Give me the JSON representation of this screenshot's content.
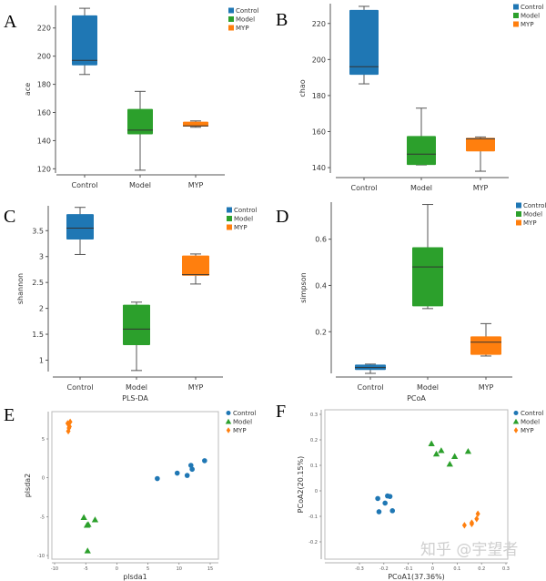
{
  "colors": {
    "Control": "#1f77b4",
    "Model": "#2ca02c",
    "MYP": "#ff7f0e"
  },
  "watermark": "知乎 @宇望者",
  "chart_data": [
    {
      "panel": "A",
      "type": "box",
      "ylabel": "ace",
      "categories": [
        "Control",
        "Model",
        "MYP"
      ],
      "yticks": [
        120,
        140,
        160,
        180,
        200,
        220
      ],
      "ylim": [
        117,
        236
      ],
      "legend": [
        "Control",
        "Model",
        "MYP"
      ],
      "legend_position": "top-right",
      "series": [
        {
          "name": "Control",
          "min": 187,
          "q1": 193.5,
          "median": 197,
          "q3": 229,
          "max": 234
        },
        {
          "name": "Model",
          "min": 119,
          "q1": 144.5,
          "median": 147.5,
          "q3": 162.5,
          "max": 175
        },
        {
          "name": "MYP",
          "min": 149.5,
          "q1": 150,
          "median": 150.5,
          "q3": 153.5,
          "max": 154
        }
      ]
    },
    {
      "panel": "B",
      "type": "box",
      "ylabel": "chao",
      "categories": [
        "Control",
        "Model",
        "MYP"
      ],
      "yticks": [
        140,
        160,
        180,
        200,
        220
      ],
      "ylim": [
        137,
        231
      ],
      "legend": [
        "Control",
        "Model",
        "MYP"
      ],
      "legend_position": "top-right",
      "series": [
        {
          "name": "Control",
          "min": 186.5,
          "q1": 191.5,
          "median": 196,
          "q3": 227.5,
          "max": 229.5
        },
        {
          "name": "Model",
          "min": 141.5,
          "q1": 141.5,
          "median": 147.5,
          "q3": 157.5,
          "max": 173
        },
        {
          "name": "MYP",
          "min": 138,
          "q1": 149,
          "median": 156,
          "q3": 156.5,
          "max": 157
        }
      ]
    },
    {
      "panel": "C",
      "type": "box",
      "ylabel": "shannon",
      "categories": [
        "Control",
        "Model",
        "MYP"
      ],
      "yticks": [
        1.0,
        1.5,
        2.0,
        2.5,
        3.0,
        3.5
      ],
      "ylim": [
        0.78,
        3.98
      ],
      "legend": [
        "Control",
        "Model",
        "MYP"
      ],
      "legend_position": "top-right",
      "series": [
        {
          "name": "Control",
          "min": 3.04,
          "q1": 3.33,
          "median": 3.55,
          "q3": 3.82,
          "max": 3.95
        },
        {
          "name": "Model",
          "min": 0.8,
          "q1": 1.29,
          "median": 1.6,
          "q3": 2.07,
          "max": 2.12
        },
        {
          "name": "MYP",
          "min": 2.47,
          "q1": 2.63,
          "median": 2.65,
          "q3": 3.02,
          "max": 3.05
        }
      ]
    },
    {
      "panel": "D",
      "type": "box",
      "ylabel": "simpson",
      "categories": [
        "Control",
        "Model",
        "MYP"
      ],
      "yticks": [
        0.2,
        0.4,
        0.6
      ],
      "ylim": [
        0.02,
        0.76
      ],
      "legend": [
        "Control",
        "Model",
        "MYP"
      ],
      "legend_position": "top-right",
      "series": [
        {
          "name": "Control",
          "min": 0.02,
          "q1": 0.035,
          "median": 0.045,
          "q3": 0.058,
          "max": 0.06
        },
        {
          "name": "Model",
          "min": 0.3,
          "q1": 0.31,
          "median": 0.48,
          "q3": 0.565,
          "max": 0.75
        },
        {
          "name": "MYP",
          "min": 0.095,
          "q1": 0.1,
          "median": 0.155,
          "q3": 0.18,
          "max": 0.235
        }
      ]
    },
    {
      "panel": "E",
      "type": "scatter",
      "title": "PLS-DA",
      "xlabel": "plsda1",
      "ylabel": "plsda2",
      "xticks": [
        -10,
        -5,
        0,
        5,
        10,
        15
      ],
      "yticks": [
        -10,
        -5,
        0,
        5
      ],
      "xlim": [
        -10.2,
        15.5
      ],
      "ylim": [
        -10.5,
        8
      ],
      "legend": [
        "Control",
        "Model",
        "MYP"
      ],
      "legend_position": "right",
      "series": [
        {
          "name": "Control",
          "marker": "circle",
          "points": [
            [
              6.5,
              -0.1
            ],
            [
              9.7,
              0.6
            ],
            [
              11.3,
              0.3
            ],
            [
              11.9,
              1.6
            ],
            [
              12.1,
              1.1
            ],
            [
              14.1,
              2.2
            ]
          ]
        },
        {
          "name": "Model",
          "marker": "triangle",
          "points": [
            [
              -5.3,
              -5.1
            ],
            [
              -3.5,
              -5.4
            ],
            [
              -4.8,
              -6.1
            ],
            [
              -4.6,
              -6.0
            ],
            [
              -4.7,
              -9.4
            ]
          ]
        },
        {
          "name": "MYP",
          "marker": "diamond",
          "points": [
            [
              -7.9,
              7.0
            ],
            [
              -7.5,
              7.2
            ],
            [
              -7.7,
              6.4
            ],
            [
              -7.8,
              6.0
            ],
            [
              -7.6,
              6.6
            ]
          ]
        }
      ]
    },
    {
      "panel": "F",
      "type": "scatter",
      "title": "PCoA",
      "xlabel": "PCoA1(37.36%)",
      "ylabel": "PCoA2(20.15%)",
      "xticks": [
        -0.3,
        -0.2,
        -0.1,
        0.0,
        0.1,
        0.2,
        0.3
      ],
      "yticks": [
        -0.2,
        -0.1,
        0.0,
        0.1,
        0.2,
        0.3
      ],
      "xlim": [
        -0.35,
        0.31
      ],
      "ylim": [
        -0.255,
        0.32
      ],
      "legend": [
        "Control",
        "Model",
        "MYP"
      ],
      "legend_position": "right",
      "series": [
        {
          "name": "Control",
          "marker": "circle",
          "points": [
            [
              -0.225,
              -0.03
            ],
            [
              -0.22,
              -0.082
            ],
            [
              -0.195,
              -0.048
            ],
            [
              -0.185,
              -0.02
            ],
            [
              -0.175,
              -0.022
            ],
            [
              -0.165,
              -0.078
            ]
          ]
        },
        {
          "name": "Model",
          "marker": "triangle",
          "points": [
            [
              -0.005,
              0.185
            ],
            [
              0.015,
              0.145
            ],
            [
              0.035,
              0.158
            ],
            [
              0.07,
              0.105
            ],
            [
              0.09,
              0.135
            ],
            [
              0.145,
              0.155
            ]
          ]
        },
        {
          "name": "MYP",
          "marker": "diamond",
          "points": [
            [
              0.13,
              -0.135
            ],
            [
              0.16,
              -0.13
            ],
            [
              0.16,
              -0.125
            ],
            [
              0.18,
              -0.11
            ],
            [
              0.185,
              -0.09
            ]
          ]
        }
      ]
    }
  ]
}
